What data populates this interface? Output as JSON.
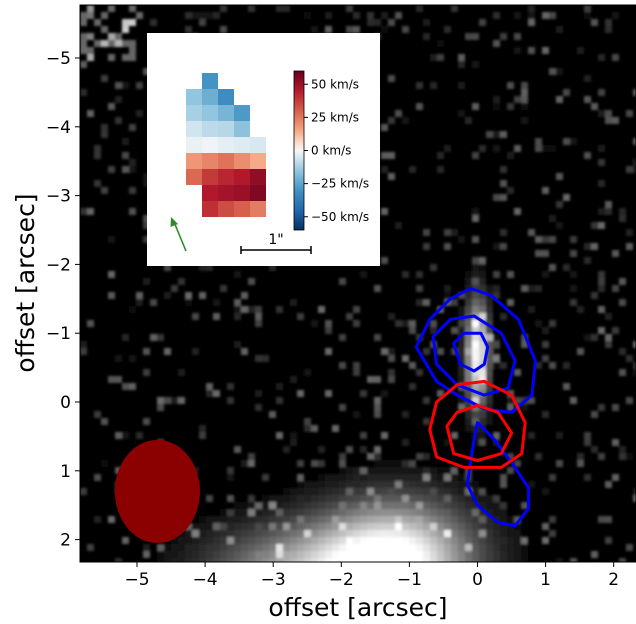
{
  "chart_data": {
    "type": "heatmap",
    "title": "",
    "xlabel": "offset [arcsec]",
    "ylabel": "offset [arcsec]",
    "xlim": [
      -5.8,
      2.3
    ],
    "ylim": [
      2.3,
      -5.8
    ],
    "x_ticks": [
      {
        "value": -5,
        "label": "−5"
      },
      {
        "value": -4,
        "label": "−4"
      },
      {
        "value": -3,
        "label": "−3"
      },
      {
        "value": -2,
        "label": "−2"
      },
      {
        "value": -1,
        "label": "−1"
      },
      {
        "value": 0,
        "label": "0"
      },
      {
        "value": 1,
        "label": "1"
      },
      {
        "value": 2,
        "label": "2"
      }
    ],
    "y_ticks": [
      {
        "value": -5,
        "label": "−5"
      },
      {
        "value": -4,
        "label": "−4"
      },
      {
        "value": -3,
        "label": "−3"
      },
      {
        "value": -2,
        "label": "−2"
      },
      {
        "value": -1,
        "label": "−1"
      },
      {
        "value": 0,
        "label": "0"
      },
      {
        "value": 1,
        "label": "1"
      },
      {
        "value": 2,
        "label": "2"
      }
    ],
    "background": "grayscale emission map",
    "bright_sources": [
      {
        "x": 0.0,
        "y": -0.7,
        "peak": 1.0,
        "sx": 0.12,
        "sy": 0.55
      },
      {
        "x": -1.2,
        "y": 2.3,
        "peak": 1.0,
        "sx": 0.8,
        "sy": 0.6
      },
      {
        "x": -2.6,
        "y": 2.5,
        "peak": 0.6,
        "sx": 1.0,
        "sy": 0.5
      }
    ],
    "beam": {
      "x": -4.7,
      "y": 1.3,
      "major_arcsec": 1.25,
      "minor_arcsec": 1.5,
      "color": "#8b0000"
    },
    "contours": [
      {
        "color": "#0000ff",
        "points": [
          [
            -0.9,
            -0.8
          ],
          [
            -0.7,
            -1.2
          ],
          [
            -0.4,
            -1.5
          ],
          [
            -0.1,
            -1.65
          ],
          [
            0.2,
            -1.55
          ],
          [
            0.6,
            -1.2
          ],
          [
            0.85,
            -0.6
          ],
          [
            0.8,
            -0.1
          ],
          [
            0.5,
            0.15
          ],
          [
            0.1,
            0.1
          ],
          [
            -0.3,
            -0.1
          ],
          [
            -0.6,
            -0.3
          ],
          [
            -0.9,
            -0.8
          ]
        ]
      },
      {
        "color": "#0000ff",
        "points": [
          [
            -0.65,
            -0.95
          ],
          [
            -0.4,
            -1.2
          ],
          [
            -0.05,
            -1.25
          ],
          [
            0.35,
            -1.0
          ],
          [
            0.55,
            -0.6
          ],
          [
            0.45,
            -0.2
          ],
          [
            0.1,
            -0.1
          ],
          [
            -0.3,
            -0.25
          ],
          [
            -0.6,
            -0.55
          ],
          [
            -0.65,
            -0.95
          ]
        ]
      },
      {
        "color": "#0000ff",
        "points": [
          [
            -0.35,
            -0.85
          ],
          [
            -0.2,
            -1.0
          ],
          [
            0.05,
            -1.0
          ],
          [
            0.15,
            -0.8
          ],
          [
            0.1,
            -0.55
          ],
          [
            -0.05,
            -0.45
          ],
          [
            -0.25,
            -0.55
          ],
          [
            -0.35,
            -0.85
          ]
        ]
      },
      {
        "color": "#0000ff",
        "points": [
          [
            0.0,
            0.3
          ],
          [
            0.25,
            0.55
          ],
          [
            0.55,
            0.95
          ],
          [
            0.75,
            1.25
          ],
          [
            0.75,
            1.55
          ],
          [
            0.55,
            1.8
          ],
          [
            0.3,
            1.75
          ],
          [
            0.0,
            1.5
          ],
          [
            -0.15,
            1.2
          ],
          [
            -0.1,
            0.85
          ],
          [
            -0.05,
            0.55
          ],
          [
            0.0,
            0.3
          ]
        ]
      },
      {
        "color": "#ff0000",
        "points": [
          [
            -0.7,
            0.4
          ],
          [
            -0.6,
            0.0
          ],
          [
            -0.3,
            -0.25
          ],
          [
            0.1,
            -0.3
          ],
          [
            0.5,
            -0.1
          ],
          [
            0.7,
            0.3
          ],
          [
            0.65,
            0.75
          ],
          [
            0.35,
            0.95
          ],
          [
            -0.2,
            0.95
          ],
          [
            -0.6,
            0.8
          ],
          [
            -0.7,
            0.4
          ]
        ]
      },
      {
        "color": "#ff0000",
        "points": [
          [
            -0.45,
            0.35
          ],
          [
            -0.3,
            0.15
          ],
          [
            0.0,
            0.05
          ],
          [
            0.3,
            0.15
          ],
          [
            0.5,
            0.45
          ],
          [
            0.35,
            0.75
          ],
          [
            0.0,
            0.85
          ],
          [
            -0.35,
            0.75
          ],
          [
            -0.45,
            0.35
          ]
        ]
      }
    ],
    "inset": {
      "type": "heatmap",
      "colormap": "RdBu_r",
      "vmin": -60,
      "vmax": 60,
      "colorbar_ticks": [
        {
          "value": 50,
          "label": "50 km/s"
        },
        {
          "value": 25,
          "label": "25 km/s"
        },
        {
          "value": 0,
          "label": "0 km/s"
        },
        {
          "value": -25,
          "label": "−25 km/s"
        },
        {
          "value": -50,
          "label": "−50 km/s"
        }
      ],
      "grid": [
        [
          null,
          null,
          null,
          null,
          null
        ],
        [
          null,
          -30,
          null,
          null,
          null
        ],
        [
          -15,
          -22,
          -32,
          null,
          null
        ],
        [
          -12,
          -15,
          -20,
          -28,
          null
        ],
        [
          -6,
          -9,
          -10,
          -16,
          null
        ],
        [
          -2,
          -1,
          -3,
          -4,
          -5
        ],
        [
          18,
          22,
          26,
          20,
          14
        ],
        [
          28,
          38,
          42,
          45,
          52
        ],
        [
          null,
          45,
          48,
          50,
          55
        ],
        [
          null,
          40,
          34,
          30,
          24
        ]
      ],
      "scale_bar_label": "1\"",
      "arrow_color": "#2e8b2e"
    }
  }
}
